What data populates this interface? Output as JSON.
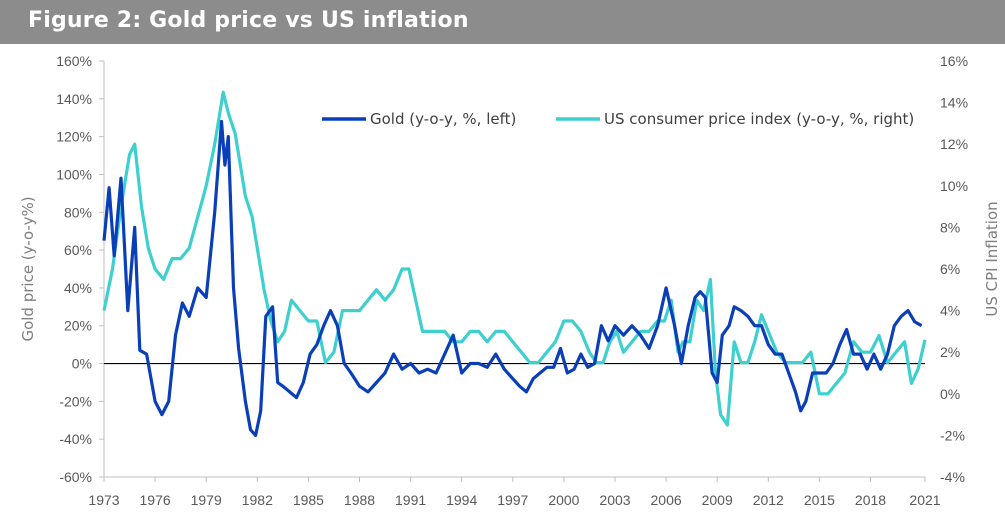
{
  "title": "Figure 2: Gold price vs US inflation",
  "colors": {
    "gold": "#0a3fb8",
    "cpi": "#3ecfcf",
    "zero_line": "#000000",
    "title_bar": "#8c8c8c"
  },
  "chart_data": {
    "type": "line",
    "title": "Figure 2: Gold price vs US inflation",
    "x_tick_labels": [
      "1973",
      "1976",
      "1979",
      "1982",
      "1985",
      "1988",
      "1991",
      "1994",
      "1997",
      "2000",
      "2003",
      "2006",
      "2009",
      "2012",
      "2015",
      "2018",
      "2021"
    ],
    "xlim": [
      1973,
      2021.2
    ],
    "left_axis": {
      "label": "Gold price (y-o-y%)",
      "ylim": [
        -60,
        160
      ],
      "ticks": [
        -60,
        -40,
        -20,
        0,
        20,
        40,
        60,
        80,
        100,
        120,
        140,
        160
      ],
      "tick_labels": [
        "-60%",
        "-40%",
        "-20%",
        "0%",
        "20%",
        "40%",
        "60%",
        "80%",
        "100%",
        "120%",
        "140%",
        "160%"
      ]
    },
    "right_axis": {
      "label": "US CPI Inflation",
      "ylim": [
        -4,
        16
      ],
      "ticks": [
        -4,
        -2,
        0,
        2,
        4,
        6,
        8,
        10,
        12,
        14,
        16
      ],
      "tick_labels": [
        "-4%",
        "-2%",
        "0%",
        "2%",
        "4%",
        "6%",
        "8%",
        "10%",
        "12%",
        "14%",
        "16%"
      ]
    },
    "legend_position": "top",
    "grid": false,
    "series": [
      {
        "name": "Gold (y-o-y, %, left)",
        "axis": "left",
        "x": [
          1973.0,
          1973.3,
          1973.6,
          1974.0,
          1974.4,
          1974.8,
          1975.1,
          1975.5,
          1976.0,
          1976.4,
          1976.8,
          1977.2,
          1977.6,
          1978.0,
          1978.5,
          1979.0,
          1979.5,
          1979.9,
          1980.1,
          1980.3,
          1980.6,
          1980.9,
          1981.3,
          1981.6,
          1981.9,
          1982.2,
          1982.5,
          1982.9,
          1983.2,
          1983.5,
          1983.9,
          1984.3,
          1984.7,
          1985.1,
          1985.5,
          1985.9,
          1986.3,
          1986.7,
          1987.1,
          1987.5,
          1988.0,
          1988.5,
          1989.0,
          1989.5,
          1990.0,
          1990.5,
          1991.0,
          1991.5,
          1992.0,
          1992.5,
          1993.0,
          1993.5,
          1994.0,
          1994.5,
          1995.0,
          1995.5,
          1996.0,
          1996.5,
          1997.0,
          1997.4,
          1997.8,
          1998.2,
          1998.6,
          1999.0,
          1999.4,
          1999.8,
          2000.2,
          2000.6,
          2001.0,
          2001.4,
          2001.8,
          2002.2,
          2002.6,
          2003.0,
          2003.5,
          2004.0,
          2004.5,
          2005.0,
          2005.5,
          2006.0,
          2006.5,
          2006.9,
          2007.3,
          2007.7,
          2008.0,
          2008.3,
          2008.7,
          2009.0,
          2009.3,
          2009.7,
          2010.0,
          2010.4,
          2010.8,
          2011.2,
          2011.6,
          2012.0,
          2012.4,
          2012.8,
          2013.2,
          2013.6,
          2013.9,
          2014.2,
          2014.6,
          2015.0,
          2015.4,
          2015.8,
          2016.2,
          2016.6,
          2017.0,
          2017.4,
          2017.8,
          2018.2,
          2018.6,
          2019.0,
          2019.4,
          2019.8,
          2020.2,
          2020.6,
          2021.0
        ],
        "values": [
          65,
          93,
          57,
          98,
          28,
          72,
          7,
          5,
          -20,
          -27,
          -20,
          15,
          32,
          25,
          40,
          35,
          80,
          128,
          105,
          120,
          40,
          8,
          -20,
          -35,
          -38,
          -25,
          25,
          30,
          -10,
          -12,
          -15,
          -18,
          -10,
          5,
          10,
          20,
          28,
          20,
          0,
          -5,
          -12,
          -15,
          -10,
          -5,
          5,
          -3,
          0,
          -5,
          -3,
          -5,
          5,
          15,
          -5,
          0,
          0,
          -2,
          5,
          -3,
          -8,
          -12,
          -15,
          -8,
          -5,
          -2,
          -2,
          8,
          -5,
          -3,
          5,
          -2,
          0,
          20,
          12,
          20,
          15,
          20,
          15,
          8,
          20,
          40,
          20,
          0,
          20,
          35,
          38,
          35,
          -5,
          -10,
          15,
          20,
          30,
          28,
          25,
          20,
          20,
          10,
          5,
          5,
          -5,
          -15,
          -25,
          -20,
          -5,
          -5,
          -5,
          0,
          10,
          18,
          5,
          5,
          -3,
          5,
          -3,
          5,
          20,
          25,
          28,
          22,
          20
        ]
      },
      {
        "name": "US consumer price index (y-o-y, %, right)",
        "axis": "right",
        "x": [
          1973.0,
          1973.5,
          1974.0,
          1974.5,
          1974.8,
          1975.2,
          1975.6,
          1976.0,
          1976.5,
          1977.0,
          1977.5,
          1978.0,
          1978.5,
          1979.0,
          1979.5,
          1980.0,
          1980.3,
          1980.7,
          1981.0,
          1981.3,
          1981.7,
          1982.0,
          1982.4,
          1982.8,
          1983.2,
          1983.6,
          1984.0,
          1984.5,
          1985.0,
          1985.5,
          1986.0,
          1986.5,
          1987.0,
          1987.5,
          1988.0,
          1988.5,
          1989.0,
          1989.5,
          1990.0,
          1990.5,
          1990.9,
          1991.3,
          1991.7,
          1992.0,
          1992.5,
          1993.0,
          1993.5,
          1994.0,
          1994.5,
          1995.0,
          1995.5,
          1996.0,
          1996.5,
          1997.0,
          1997.5,
          1998.0,
          1998.5,
          1999.0,
          1999.5,
          2000.0,
          2000.5,
          2001.0,
          2001.5,
          2001.9,
          2002.3,
          2002.7,
          2003.1,
          2003.5,
          2004.0,
          2004.5,
          2005.0,
          2005.5,
          2005.9,
          2006.3,
          2006.7,
          2007.0,
          2007.4,
          2007.8,
          2008.2,
          2008.6,
          2008.9,
          2009.2,
          2009.6,
          2010.0,
          2010.4,
          2010.8,
          2011.2,
          2011.6,
          2012.0,
          2012.5,
          2013.0,
          2013.5,
          2014.0,
          2014.5,
          2015.0,
          2015.5,
          2016.0,
          2016.5,
          2017.0,
          2017.5,
          2018.0,
          2018.5,
          2019.0,
          2019.5,
          2020.0,
          2020.4,
          2020.8,
          2021.2
        ],
        "values": [
          4.0,
          6.0,
          9.0,
          11.5,
          12.0,
          9.0,
          7.0,
          6.0,
          5.5,
          6.5,
          6.5,
          7.0,
          8.5,
          10.0,
          12.0,
          14.5,
          13.5,
          12.5,
          11.0,
          9.5,
          8.5,
          7.0,
          5.0,
          3.5,
          2.5,
          3.0,
          4.5,
          4.0,
          3.5,
          3.5,
          1.5,
          2.0,
          4.0,
          4.0,
          4.0,
          4.5,
          5.0,
          4.5,
          5.0,
          6.0,
          6.0,
          4.5,
          3.0,
          3.0,
          3.0,
          3.0,
          2.5,
          2.5,
          3.0,
          3.0,
          2.5,
          3.0,
          3.0,
          2.5,
          2.0,
          1.5,
          1.5,
          2.0,
          2.5,
          3.5,
          3.5,
          3.0,
          2.0,
          1.5,
          1.5,
          2.5,
          3.0,
          2.0,
          2.5,
          3.0,
          3.0,
          3.5,
          3.5,
          4.5,
          2.0,
          2.5,
          2.5,
          4.5,
          4.0,
          5.5,
          1.0,
          -1.0,
          -1.5,
          2.5,
          1.5,
          1.5,
          2.5,
          3.8,
          3.0,
          2.0,
          1.5,
          1.5,
          1.5,
          2.0,
          0.0,
          0.0,
          0.5,
          1.0,
          2.5,
          2.0,
          2.0,
          2.8,
          1.5,
          2.0,
          2.5,
          0.5,
          1.2,
          2.6
        ]
      }
    ]
  }
}
